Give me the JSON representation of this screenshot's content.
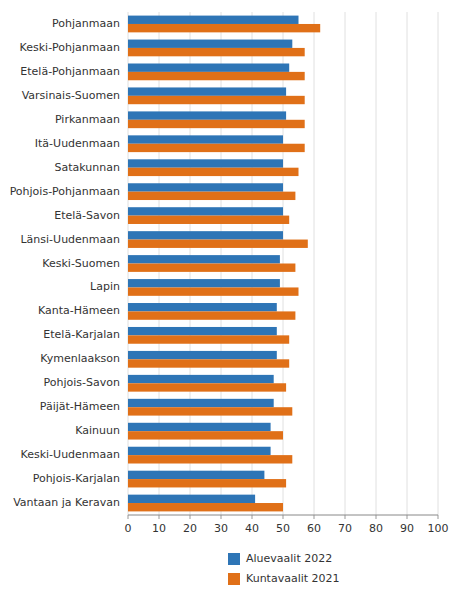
{
  "chart_data": {
    "type": "bar",
    "orientation": "horizontal",
    "categories": [
      "Pohjanmaan",
      "Keski-Pohjanmaan",
      "Etelä-Pohjanmaan",
      "Varsinais-Suomen",
      "Pirkanmaan",
      "Itä-Uudenmaan",
      "Satakunnan",
      "Pohjois-Pohjanmaan",
      "Etelä-Savon",
      "Länsi-Uudenmaan",
      "Keski-Suomen",
      "Lapin",
      "Kanta-Hämeen",
      "Etelä-Karjalan",
      "Kymenlaakson",
      "Pohjois-Savon",
      "Päijät-Hämeen",
      "Kainuun",
      "Keski-Uudenmaan",
      "Pohjois-Karjalan",
      "Vantaan ja Keravan"
    ],
    "series": [
      {
        "name": "Aluevaalit 2022",
        "color": "#2E75B6",
        "values": [
          55,
          53,
          52,
          51,
          51,
          50,
          50,
          50,
          50,
          50,
          49,
          49,
          48,
          48,
          48,
          47,
          47,
          46,
          46,
          44,
          41
        ]
      },
      {
        "name": "Kuntavaalit 2021",
        "color": "#E07018",
        "values": [
          62,
          57,
          57,
          57,
          57,
          57,
          55,
          54,
          52,
          58,
          54,
          55,
          54,
          52,
          52,
          51,
          53,
          50,
          53,
          51,
          50
        ]
      }
    ],
    "xlim": [
      0,
      100
    ],
    "xticks": [
      0,
      10,
      20,
      30,
      40,
      50,
      60,
      70,
      80,
      90,
      100
    ],
    "grid": true,
    "legend": "bottom"
  }
}
